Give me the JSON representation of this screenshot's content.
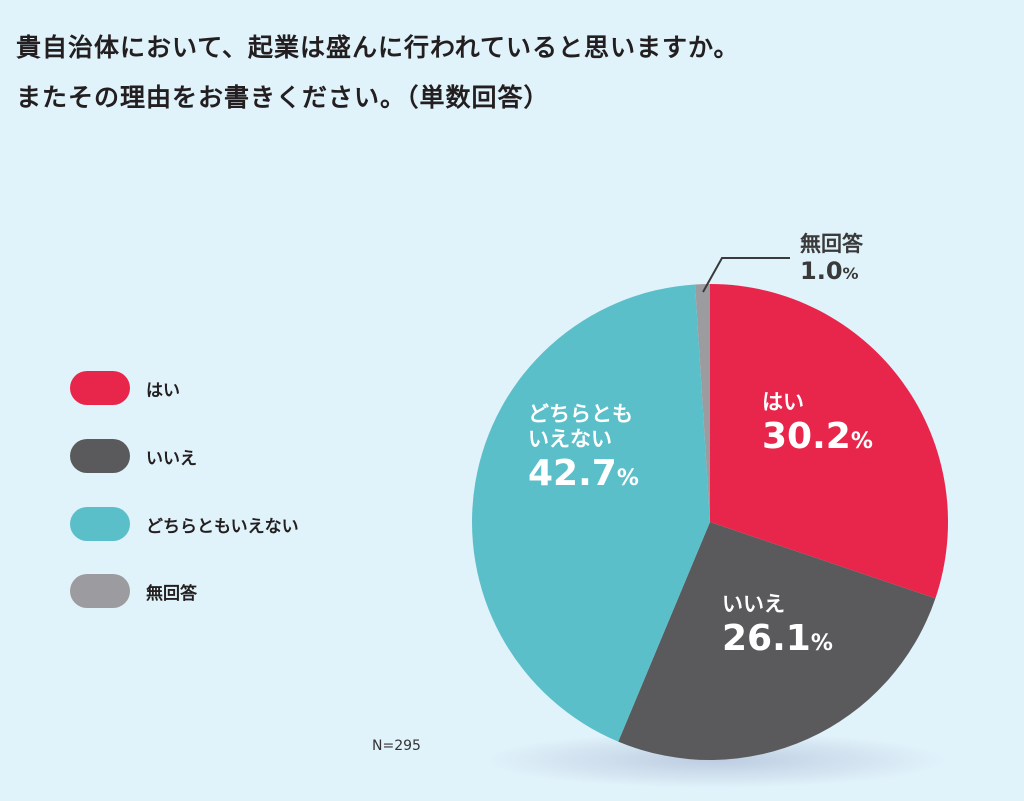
{
  "title_lines": [
    "貴自治体において、起業は盛んに行われていると思いますか。",
    "またその理由をお書きください。（単数回答）"
  ],
  "chart_data": {
    "type": "pie",
    "title": "貴自治体において、起業は盛んに行われていると思いますか。またその理由をお書きください。（単数回答）",
    "slices": [
      {
        "label": "はい",
        "value": 30.2,
        "color": "#e8254a",
        "display": "30.2"
      },
      {
        "label": "いいえ",
        "value": 26.1,
        "color": "#5a5a5d",
        "display": "26.1"
      },
      {
        "label": "どちらともいえない",
        "value": 42.7,
        "color": "#5bbfca",
        "display": "42.7"
      },
      {
        "label": "無回答",
        "value": 1.0,
        "color": "#9c9ca0",
        "display": "1.0"
      }
    ],
    "slice_labels": {
      "neither_line1": "どちらとも",
      "neither_line2": "いえない"
    },
    "percent_sign": "%",
    "start": "top",
    "direction": "clockwise",
    "legend_position": "left",
    "note": "N=295"
  }
}
